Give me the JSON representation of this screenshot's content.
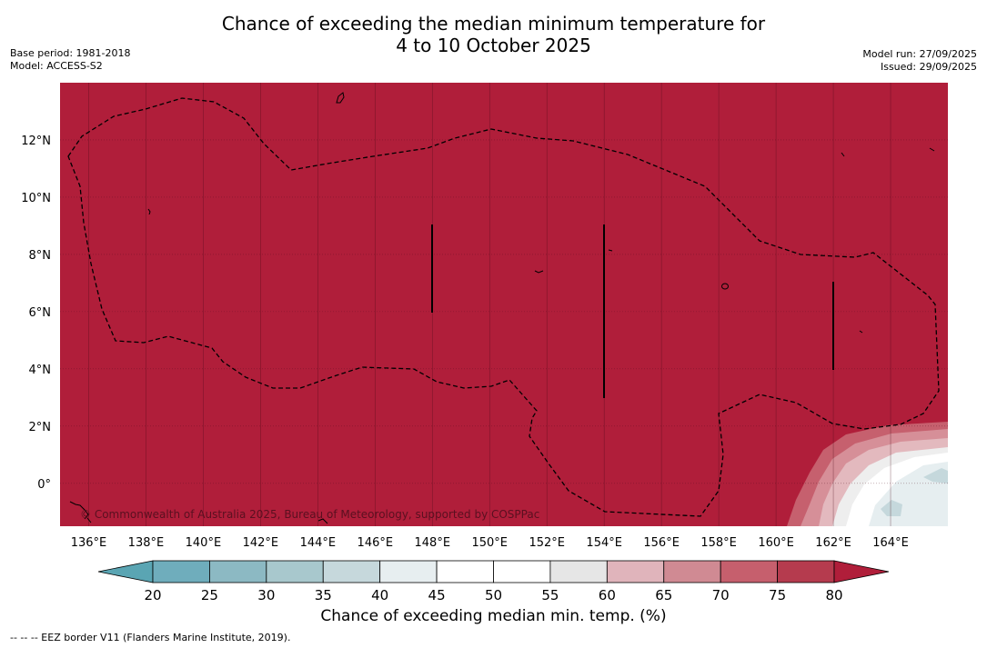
{
  "title": {
    "line1": "Chance of exceeding the median minimum temperature for",
    "line2": "4 to 10 October 2025"
  },
  "meta": {
    "base_period": "Base period: 1981-2018",
    "model": "Model: ACCESS-S2",
    "model_run": "Model run: 27/09/2025",
    "issued": "Issued: 29/09/2025"
  },
  "copyright": "© Commonwealth of Australia 2025, Bureau of Meteorology, supported by COSPPac",
  "axes": {
    "lon_labels": [
      "136°E",
      "138°E",
      "140°E",
      "142°E",
      "144°E",
      "146°E",
      "148°E",
      "150°E",
      "152°E",
      "154°E",
      "156°E",
      "158°E",
      "160°E",
      "162°E",
      "164°E"
    ],
    "lon_values": [
      136,
      138,
      140,
      142,
      144,
      146,
      148,
      150,
      152,
      154,
      156,
      158,
      160,
      162,
      164
    ],
    "lat_labels": [
      "12°N",
      "10°N",
      "8°N",
      "6°N",
      "4°N",
      "2°N",
      "0°"
    ],
    "lat_values": [
      12,
      10,
      8,
      6,
      4,
      2,
      0
    ],
    "lon_range": [
      135.0,
      166.0
    ],
    "lat_range": [
      -1.5,
      14.0
    ]
  },
  "colorbar": {
    "title": "Chance of exceeding median min. temp. (%)",
    "ticks": [
      "20",
      "25",
      "30",
      "35",
      "40",
      "45",
      "50",
      "55",
      "60",
      "65",
      "70",
      "75",
      "80"
    ],
    "colors": [
      "#5aa5b3",
      "#6fadbc",
      "#8cb9c3",
      "#a8c8cd",
      "#c6d8dc",
      "#e7eef0",
      "#ffffff",
      "#ffffff",
      "#e6e6e6",
      "#e0b4bb",
      "#d08a93",
      "#c65f6d",
      "#b53b4e",
      "#b01e3a"
    ]
  },
  "map_colors": {
    "ocean": "#b01e3a"
  },
  "footer": "--  --  -- EEZ border V11 (Flanders Marine Institute, 2019)."
}
